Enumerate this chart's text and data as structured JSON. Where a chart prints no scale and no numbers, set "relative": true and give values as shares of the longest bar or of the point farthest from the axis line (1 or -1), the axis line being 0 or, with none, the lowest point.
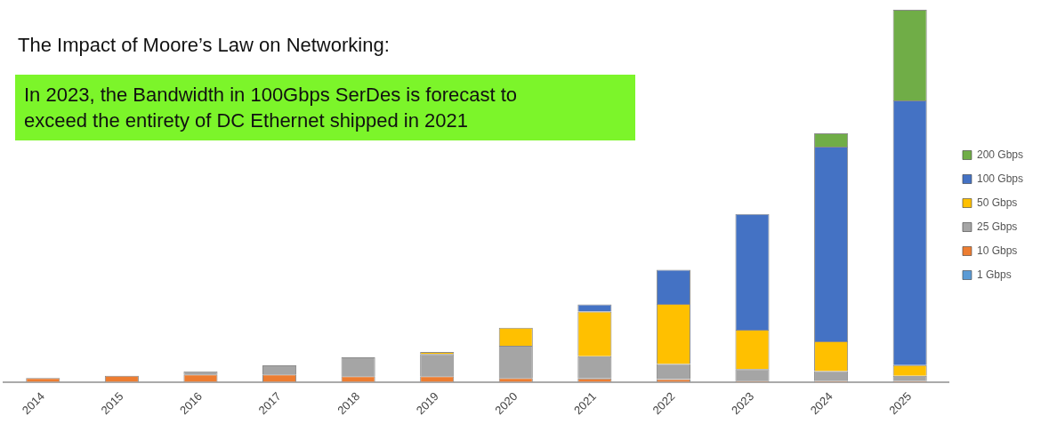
{
  "chart_data": {
    "type": "bar",
    "title": "The Impact of Moore’s Law on Networking:",
    "subtitle": "In 2023, the Bandwidth in 100Gbps SerDes is forecast to\nexceed the entirety of DC Ethernet shipped in 2021",
    "categories": [
      "2014",
      "2015",
      "2016",
      "2017",
      "2018",
      "2019",
      "2020",
      "2021",
      "2022",
      "2023",
      "2024",
      "2025"
    ],
    "stacked": true,
    "relative": true,
    "grid": false,
    "legend": "right",
    "series": [
      {
        "name": "1 Gbps",
        "color": "#5b9bd5",
        "values": [
          0,
          0,
          0,
          0,
          0,
          0,
          0,
          0,
          0,
          0,
          0,
          0
        ]
      },
      {
        "name": "10 Gbps",
        "color": "#ed7d31",
        "values": [
          0.01,
          0.016,
          0.02,
          0.02,
          0.015,
          0.015,
          0.01,
          0.009,
          0.007,
          0.003,
          0.002,
          0.002
        ]
      },
      {
        "name": "25 Gbps",
        "color": "#a5a5a5",
        "values": [
          0,
          0,
          0.008,
          0.024,
          0.051,
          0.06,
          0.087,
          0.06,
          0.041,
          0.031,
          0.027,
          0.014
        ]
      },
      {
        "name": "50 Gbps",
        "color": "#ffc000",
        "values": [
          0,
          0,
          0,
          0,
          0,
          0.005,
          0.048,
          0.12,
          0.161,
          0.106,
          0.08,
          0.029
        ]
      },
      {
        "name": "100 Gbps",
        "color": "#4472c4",
        "values": [
          0,
          0,
          0,
          0,
          0,
          0,
          0,
          0.019,
          0.092,
          0.311,
          0.523,
          0.711
        ]
      },
      {
        "name": "200 Gbps",
        "color": "#70ad47",
        "values": [
          0,
          0,
          0,
          0,
          0,
          0,
          0,
          0,
          0,
          0,
          0.036,
          0.244
        ]
      }
    ]
  }
}
